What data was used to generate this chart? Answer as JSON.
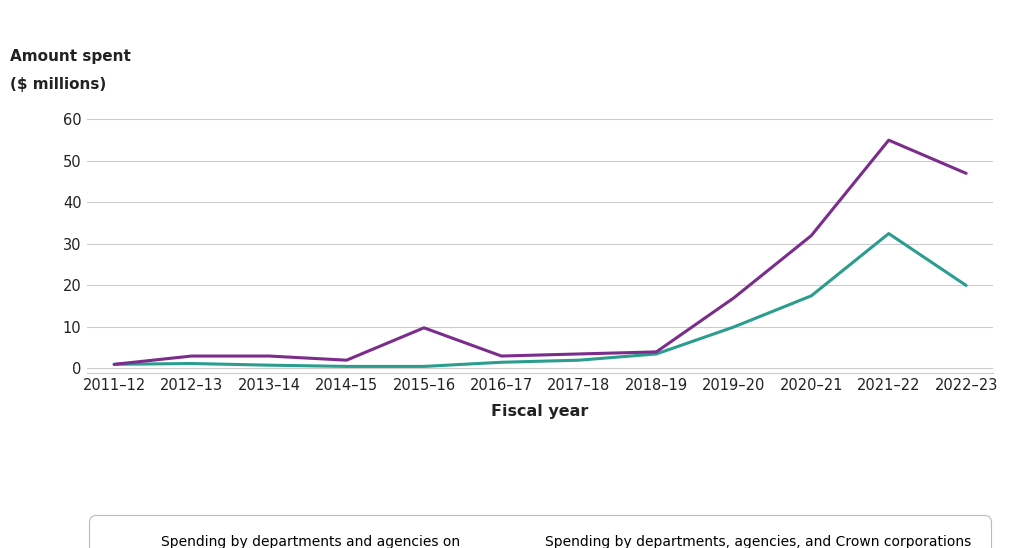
{
  "fiscal_years": [
    "2011–12",
    "2012–13",
    "2013–14",
    "2014–15",
    "2015–16",
    "2016–17",
    "2017–18",
    "2018–19",
    "2019–20",
    "2020–21",
    "2021–22",
    "2022–23"
  ],
  "departments_agencies": [
    1.0,
    1.2,
    0.8,
    0.5,
    0.5,
    1.5,
    2.0,
    3.5,
    10.0,
    17.5,
    32.5,
    20.0
  ],
  "departments_agencies_crown": [
    1.0,
    3.0,
    3.0,
    2.0,
    9.8,
    3.0,
    3.5,
    4.0,
    17.0,
    32.0,
    55.0,
    47.0
  ],
  "color_teal": "#2a9d8f",
  "color_purple": "#7b2d8b",
  "ylabel_line1": "Amount spent",
  "ylabel_line2": "($ millions)",
  "xlabel": "Fiscal year",
  "yticks": [
    0,
    10,
    20,
    30,
    40,
    50,
    60
  ],
  "ylim": [
    -1,
    65
  ],
  "legend_label_teal": "Spending by departments and agencies on\ncontracts awarded to McKinsey & Company",
  "legend_label_purple": "Spending by departments, agencies, and Crown corporations\non contracts awarded to McKinsey & Company",
  "line_width": 2.2,
  "background_color": "#ffffff",
  "grid_color": "#cccccc",
  "legend_box_color": "#ffffff",
  "text_color": "#222222"
}
